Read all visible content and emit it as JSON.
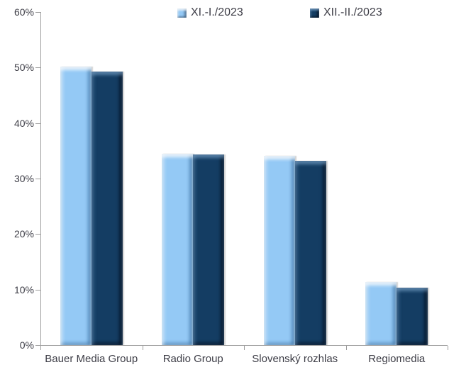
{
  "chart_data": {
    "type": "bar",
    "title": "",
    "categories": [
      "Bauer Media Group",
      "Radio Group",
      "Slovenský rozhlas",
      "Regiomedia"
    ],
    "series": [
      {
        "name": "XI.-I./2023",
        "color": "#94C9F5",
        "values": [
          50.2,
          34.5,
          34.1,
          11.4
        ]
      },
      {
        "name": "XII.-II./2023",
        "color": "#143D63",
        "values": [
          49.3,
          34.3,
          33.2,
          10.3
        ]
      }
    ],
    "xlabel": "",
    "ylabel": "",
    "ylim": [
      0,
      60
    ],
    "yticks": [
      {
        "value": 0,
        "label": "0%"
      },
      {
        "value": 10,
        "label": "10%"
      },
      {
        "value": 20,
        "label": "20%"
      },
      {
        "value": 30,
        "label": "30%"
      },
      {
        "value": 40,
        "label": "40%"
      },
      {
        "value": 50,
        "label": "50%"
      },
      {
        "value": 60,
        "label": "60%"
      }
    ],
    "grid": false,
    "legend_position": "top"
  },
  "colors": {
    "background": "#FFFFFF",
    "axis": "#9E9E9E",
    "text": "#3E3E47",
    "series1": "#94C9F5",
    "series2": "#143D63"
  }
}
